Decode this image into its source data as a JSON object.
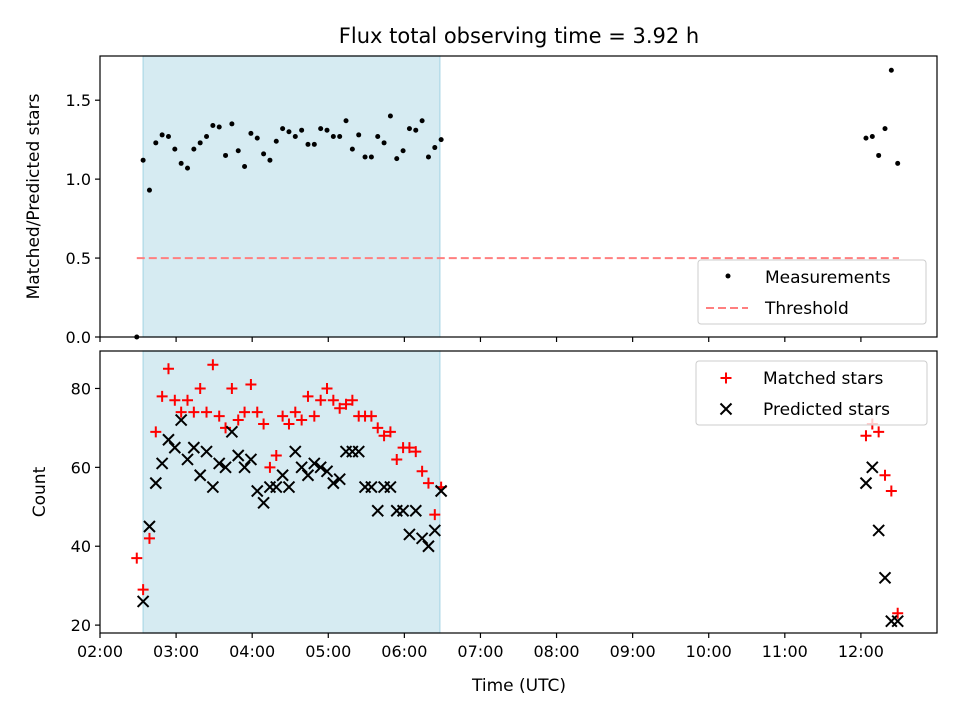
{
  "figure": {
    "title": "Flux total observing time = 3.92 h",
    "xlabel": "Time (UTC)"
  },
  "colors": {
    "shade": "#add8e6",
    "threshold": "#ff7f7f",
    "matched": "#ff0000",
    "predicted": "#000000",
    "measurement": "#000000"
  },
  "chart_data": [
    {
      "type": "scatter",
      "ylabel": "Matched/Predicted stars",
      "xlim": [
        "02:00",
        "13:00"
      ],
      "ylim": [
        0,
        1.78
      ],
      "yticks": [
        0.0,
        0.5,
        1.0,
        1.5
      ],
      "yticklabels": [
        "0.0",
        "0.5",
        "1.0",
        "1.5"
      ],
      "xticks": [
        "02:00",
        "03:00",
        "04:00",
        "05:00",
        "06:00",
        "07:00",
        "08:00",
        "09:00",
        "10:00",
        "11:00",
        "12:00"
      ],
      "shaded_span": [
        "02:34",
        "06:28"
      ],
      "legend": {
        "placement": "lower right",
        "entries": [
          "Measurements",
          "Threshold"
        ]
      },
      "threshold": {
        "name": "Threshold",
        "y": 0.5,
        "x": [
          "02:29",
          "12:30"
        ]
      },
      "series": [
        {
          "name": "Measurements",
          "x": [
            "02:29",
            "02:34",
            "02:39",
            "02:44",
            "02:49",
            "02:54",
            "02:59",
            "03:04",
            "03:09",
            "03:14",
            "03:19",
            "03:24",
            "03:29",
            "03:34",
            "03:39",
            "03:44",
            "03:49",
            "03:54",
            "03:59",
            "04:04",
            "04:09",
            "04:14",
            "04:19",
            "04:24",
            "04:29",
            "04:34",
            "04:39",
            "04:44",
            "04:49",
            "04:54",
            "04:59",
            "05:04",
            "05:09",
            "05:14",
            "05:19",
            "05:24",
            "05:29",
            "05:34",
            "05:39",
            "05:44",
            "05:49",
            "05:54",
            "05:59",
            "06:04",
            "06:09",
            "06:14",
            "06:19",
            "06:24",
            "06:29",
            "12:04",
            "12:09",
            "12:14",
            "12:19",
            "12:24",
            "12:29"
          ],
          "y": [
            0.0,
            1.12,
            0.93,
            1.23,
            1.28,
            1.27,
            1.19,
            1.1,
            1.07,
            1.19,
            1.23,
            1.27,
            1.34,
            1.33,
            1.15,
            1.35,
            1.18,
            1.08,
            1.29,
            1.26,
            1.16,
            1.12,
            1.24,
            1.32,
            1.3,
            1.27,
            1.31,
            1.22,
            1.22,
            1.32,
            1.31,
            1.27,
            1.27,
            1.37,
            1.19,
            1.28,
            1.14,
            1.14,
            1.27,
            1.23,
            1.4,
            1.13,
            1.18,
            1.32,
            1.31,
            1.37,
            1.14,
            1.2,
            1.25,
            1.26,
            1.27,
            1.15,
            1.32,
            1.69,
            1.1
          ]
        }
      ]
    },
    {
      "type": "scatter",
      "ylabel": "Count",
      "xlim": [
        "02:00",
        "13:00"
      ],
      "ylim": [
        18,
        89.5
      ],
      "yticks": [
        20,
        40,
        60,
        80
      ],
      "yticklabels": [
        "20",
        "40",
        "60",
        "80"
      ],
      "xticks": [
        "02:00",
        "03:00",
        "04:00",
        "05:00",
        "06:00",
        "07:00",
        "08:00",
        "09:00",
        "10:00",
        "11:00",
        "12:00"
      ],
      "xticklabels": [
        "02:00",
        "03:00",
        "04:00",
        "05:00",
        "06:00",
        "07:00",
        "08:00",
        "09:00",
        "10:00",
        "11:00",
        "12:00"
      ],
      "shaded_span": [
        "02:34",
        "06:28"
      ],
      "legend": {
        "placement": "upper right",
        "entries": [
          "Matched stars",
          "Predicted stars"
        ]
      },
      "series": [
        {
          "name": "Matched stars",
          "marker": "+",
          "x": [
            "02:29",
            "02:34",
            "02:39",
            "02:44",
            "02:49",
            "02:54",
            "02:59",
            "03:04",
            "03:09",
            "03:14",
            "03:19",
            "03:24",
            "03:29",
            "03:34",
            "03:39",
            "03:44",
            "03:49",
            "03:54",
            "03:59",
            "04:04",
            "04:09",
            "04:14",
            "04:19",
            "04:24",
            "04:29",
            "04:34",
            "04:39",
            "04:44",
            "04:49",
            "04:54",
            "04:59",
            "05:04",
            "05:09",
            "05:14",
            "05:19",
            "05:24",
            "05:29",
            "05:34",
            "05:39",
            "05:44",
            "05:49",
            "05:54",
            "05:59",
            "06:04",
            "06:09",
            "06:14",
            "06:19",
            "06:24",
            "06:29",
            "12:04",
            "12:09",
            "12:14",
            "12:19",
            "12:24",
            "12:29"
          ],
          "y": [
            37,
            29,
            42,
            69,
            78,
            85,
            77,
            74,
            77,
            74,
            80,
            74,
            86,
            73,
            70,
            80,
            72,
            74,
            81,
            74,
            71,
            60,
            63,
            73,
            71,
            74,
            72,
            78,
            73,
            77,
            80,
            77,
            75,
            76,
            77,
            73,
            73,
            73,
            70,
            68,
            69,
            62,
            65,
            65,
            64,
            59,
            56,
            48,
            55,
            68,
            71,
            69,
            58,
            54,
            23
          ]
        },
        {
          "name": "Predicted stars",
          "marker": "x",
          "x": [
            "02:34",
            "02:39",
            "02:44",
            "02:49",
            "02:54",
            "02:59",
            "03:04",
            "03:09",
            "03:14",
            "03:19",
            "03:24",
            "03:29",
            "03:34",
            "03:39",
            "03:44",
            "03:49",
            "03:54",
            "03:59",
            "04:04",
            "04:09",
            "04:14",
            "04:19",
            "04:24",
            "04:29",
            "04:34",
            "04:39",
            "04:44",
            "04:49",
            "04:54",
            "04:59",
            "05:04",
            "05:09",
            "05:14",
            "05:19",
            "05:24",
            "05:29",
            "05:34",
            "05:39",
            "05:44",
            "05:49",
            "05:54",
            "05:59",
            "06:04",
            "06:09",
            "06:14",
            "06:19",
            "06:24",
            "06:29",
            "12:04",
            "12:09",
            "12:14",
            "12:19",
            "12:24",
            "12:29"
          ],
          "y": [
            26,
            45,
            56,
            61,
            67,
            65,
            72,
            62,
            65,
            58,
            64,
            55,
            61,
            60,
            69,
            63,
            60,
            62,
            54,
            51,
            55,
            55,
            58,
            55,
            64,
            60,
            58,
            61,
            60,
            59,
            56,
            57,
            64,
            64,
            64,
            55,
            55,
            49,
            55,
            55,
            49,
            49,
            43,
            49,
            42,
            40,
            44,
            54,
            56,
            60,
            44,
            32,
            21,
            21
          ]
        }
      ]
    }
  ]
}
